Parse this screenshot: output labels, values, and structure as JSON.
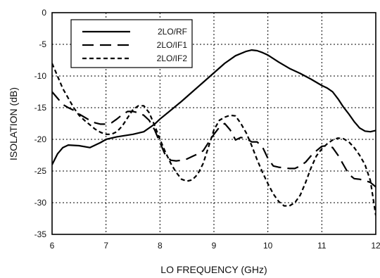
{
  "chart_data": {
    "type": "line",
    "title": "",
    "xlabel": "LO FREQUENCY (GHz)",
    "ylabel": "ISOLATION (dB)",
    "xlim": [
      6,
      12
    ],
    "ylim": [
      -35,
      0
    ],
    "xticks": [
      6,
      7,
      8,
      9,
      10,
      11,
      12
    ],
    "yticks": [
      0,
      -5,
      -10,
      -15,
      -20,
      -25,
      -30,
      -35
    ],
    "grid": true,
    "legend_position": "top-left",
    "series": [
      {
        "name": "2LO/RF",
        "style": "solid",
        "x": [
          6.0,
          6.1,
          6.2,
          6.3,
          6.5,
          6.7,
          6.9,
          7.0,
          7.2,
          7.5,
          7.7,
          7.9,
          8.0,
          8.2,
          8.4,
          8.6,
          8.8,
          9.0,
          9.2,
          9.4,
          9.6,
          9.7,
          9.8,
          9.9,
          10.0,
          10.2,
          10.4,
          10.6,
          10.8,
          11.0,
          11.1,
          11.2,
          11.3,
          11.4,
          11.5,
          11.6,
          11.7,
          11.8,
          11.9,
          12.0
        ],
        "values": [
          -24.0,
          -22.3,
          -21.3,
          -20.9,
          -21.0,
          -21.3,
          -20.5,
          -20.0,
          -19.6,
          -19.2,
          -18.8,
          -17.6,
          -16.8,
          -15.4,
          -14.0,
          -12.5,
          -11.0,
          -9.5,
          -8.0,
          -6.8,
          -6.1,
          -5.9,
          -6.0,
          -6.3,
          -6.7,
          -7.8,
          -8.8,
          -9.6,
          -10.5,
          -11.5,
          -11.9,
          -12.5,
          -13.6,
          -14.9,
          -16.0,
          -17.2,
          -18.2,
          -18.7,
          -18.8,
          -18.6
        ]
      },
      {
        "name": "2LO/IF1",
        "style": "long-dash",
        "x": [
          6.0,
          6.1,
          6.2,
          6.3,
          6.4,
          6.5,
          6.6,
          6.7,
          6.8,
          6.9,
          7.0,
          7.1,
          7.2,
          7.3,
          7.4,
          7.5,
          7.6,
          7.7,
          7.8,
          7.9,
          8.0,
          8.1,
          8.2,
          8.3,
          8.4,
          8.5,
          8.6,
          8.7,
          8.8,
          8.9,
          9.0,
          9.1,
          9.2,
          9.3,
          9.4,
          9.5,
          9.6,
          9.7,
          9.8,
          9.9,
          10.0,
          10.1,
          10.2,
          10.3,
          10.4,
          10.5,
          10.6,
          10.7,
          10.8,
          10.9,
          11.0,
          11.1,
          11.2,
          11.3,
          11.4,
          11.5,
          11.6,
          11.7,
          11.8,
          11.9,
          12.0
        ],
        "values": [
          -12.5,
          -13.5,
          -14.5,
          -15.0,
          -15.4,
          -16.0,
          -16.5,
          -17.0,
          -17.4,
          -17.6,
          -17.6,
          -17.4,
          -16.8,
          -16.1,
          -15.6,
          -15.6,
          -15.8,
          -16.2,
          -17.0,
          -18.5,
          -20.5,
          -22.5,
          -23.3,
          -23.4,
          -23.3,
          -23.1,
          -22.7,
          -22.3,
          -21.8,
          -20.5,
          -19.2,
          -18.1,
          -17.5,
          -18.5,
          -20.1,
          -19.7,
          -19.9,
          -20.4,
          -20.4,
          -21.2,
          -23.0,
          -24.2,
          -24.4,
          -24.5,
          -24.6,
          -24.6,
          -24.2,
          -23.6,
          -22.6,
          -21.8,
          -21.1,
          -21.0,
          -21.3,
          -22.5,
          -24.0,
          -25.5,
          -26.2,
          -26.3,
          -26.5,
          -26.8,
          -27.5
        ]
      },
      {
        "name": "2LO/IF2",
        "style": "short-dash",
        "x": [
          6.0,
          6.1,
          6.2,
          6.3,
          6.4,
          6.5,
          6.6,
          6.7,
          6.8,
          6.9,
          7.0,
          7.1,
          7.2,
          7.3,
          7.4,
          7.5,
          7.6,
          7.7,
          7.8,
          7.9,
          8.0,
          8.1,
          8.2,
          8.3,
          8.4,
          8.5,
          8.6,
          8.7,
          8.8,
          8.9,
          9.0,
          9.1,
          9.2,
          9.3,
          9.4,
          9.5,
          9.6,
          9.7,
          9.8,
          9.9,
          10.0,
          10.1,
          10.2,
          10.3,
          10.4,
          10.5,
          10.6,
          10.7,
          10.8,
          10.9,
          11.0,
          11.1,
          11.2,
          11.3,
          11.4,
          11.5,
          11.6,
          11.7,
          11.8,
          11.9,
          12.0
        ],
        "values": [
          -8.0,
          -10.0,
          -12.0,
          -13.5,
          -15.0,
          -16.2,
          -17.0,
          -17.7,
          -18.4,
          -18.9,
          -19.2,
          -19.2,
          -18.8,
          -17.9,
          -16.6,
          -15.3,
          -14.7,
          -14.7,
          -15.8,
          -17.8,
          -20.0,
          -22.0,
          -23.8,
          -25.2,
          -26.3,
          -26.6,
          -26.4,
          -25.5,
          -23.8,
          -21.2,
          -18.5,
          -17.0,
          -16.5,
          -16.2,
          -16.3,
          -17.5,
          -19.0,
          -21.0,
          -23.2,
          -25.2,
          -27.0,
          -28.6,
          -29.8,
          -30.5,
          -30.5,
          -30.0,
          -28.8,
          -26.8,
          -24.5,
          -22.6,
          -21.5,
          -20.7,
          -20.1,
          -19.8,
          -19.9,
          -20.4,
          -21.3,
          -22.5,
          -24.0,
          -26.5,
          -32.0
        ]
      }
    ]
  }
}
